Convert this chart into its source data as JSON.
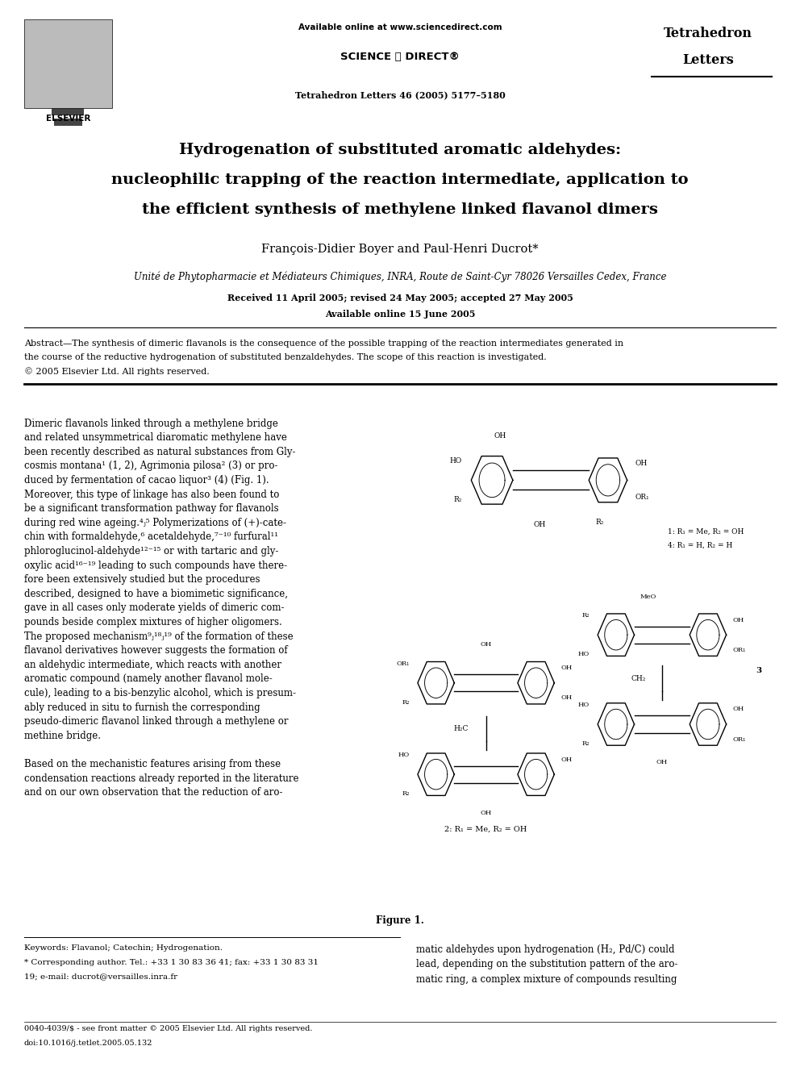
{
  "bg_color": "#ffffff",
  "page_width": 9.92,
  "page_height": 13.23,
  "header_available": "Available online at www.sciencedirect.com",
  "header_sciencedirect": "SCIENCE ⓐ DIRECT®",
  "journal_name_1": "Tetrahedron",
  "journal_name_2": "Letters",
  "journal_ref": "Tetrahedron Letters 46 (2005) 5177–5180",
  "elsevier": "ELSEVIER",
  "title_1": "Hydrogenation of substituted aromatic aldehydes:",
  "title_2": "nucleophilic trapping of the reaction intermediate, application to",
  "title_3": "the efficient synthesis of methylene linked flavanol dimers",
  "authors": "François-Didier Boyer and Paul-Henri Ducrot*",
  "affiliation": "Unité de Phytopharmacie et Médiateurs Chimiques, INRA, Route de Saint-Cyr 78026 Versailles Cedex, France",
  "dates": "Received 11 April 2005; revised 24 May 2005; accepted 27 May 2005",
  "online": "Available online 15 June 2005",
  "abstract_line1": "Abstract—The synthesis of dimeric flavanols is the consequence of the possible trapping of the reaction intermediates generated in",
  "abstract_line2": "the course of the reductive hydrogenation of substituted benzaldehydes. The scope of this reaction is investigated.",
  "abstract_line3": "© 2005 Elsevier Ltd. All rights reserved.",
  "body_left": [
    "Dimeric flavanols linked through a methylene bridge",
    "and related unsymmetrical diaromatic methylene have",
    "been recently described as natural substances from Gly-",
    "cosmis montana¹ (1, 2), Agrimonia pilosa² (3) or pro-",
    "duced by fermentation of cacao liquor³ (4) (Fig. 1).",
    "Moreover, this type of linkage has also been found to",
    "be a significant transformation pathway for flavanols",
    "during red wine ageing.⁴ⱼ⁵ Polymerizations of (+)-cate-",
    "chin with formaldehyde,⁶ acetaldehyde,⁷⁻¹⁰ furfural¹¹",
    "phloroglucinol-aldehyde¹²⁻¹⁵ or with tartaric and gly-",
    "oxylic acid¹⁶⁻¹⁹ leading to such compounds have there-",
    "fore been extensively studied but the procedures",
    "described, designed to have a biomimetic significance,",
    "gave in all cases only moderate yields of dimeric com-",
    "pounds beside complex mixtures of higher oligomers.",
    "The proposed mechanism⁹ⱼ¹⁸ⱼ¹⁹ of the formation of these",
    "flavanol derivatives however suggests the formation of",
    "an aldehydic intermediate, which reacts with another",
    "aromatic compound (namely another flavanol mole-",
    "cule), leading to a bis-benzylic alcohol, which is presum-",
    "ably reduced in situ to furnish the corresponding",
    "pseudo-dimeric flavanol linked through a methylene or",
    "methine bridge.",
    "",
    "Based on the mechanistic features arising from these",
    "condensation reactions already reported in the literature",
    "and on our own observation that the reduction of aro-"
  ],
  "figure_caption": "Figure 1.",
  "label_14_a": "1: R₁ = Me, R₂ = OH",
  "label_14_b": "4: R₁ = H, R₂ = H",
  "label_2": "2: R₁ = Me, R₂ = OH",
  "label_3": "3",
  "keywords": "Keywords: Flavanol; Catechin; Hydrogenation.",
  "corresp": "* Corresponding author. Tel.: +33 1 30 83 36 41; fax: +33 1 30 83 31",
  "corresp2": "19; e-mail: ducrot@versailles.inra.fr",
  "footer_right": [
    "matic aldehydes upon hydrogenation (H₂, Pd/C) could",
    "lead, depending on the substitution pattern of the aro-",
    "matic ring, a complex mixture of compounds resulting"
  ],
  "issn": "0040-4039/$ - see front matter © 2005 Elsevier Ltd. All rights reserved.",
  "doi": "doi:10.1016/j.tetlet.2005.05.132"
}
